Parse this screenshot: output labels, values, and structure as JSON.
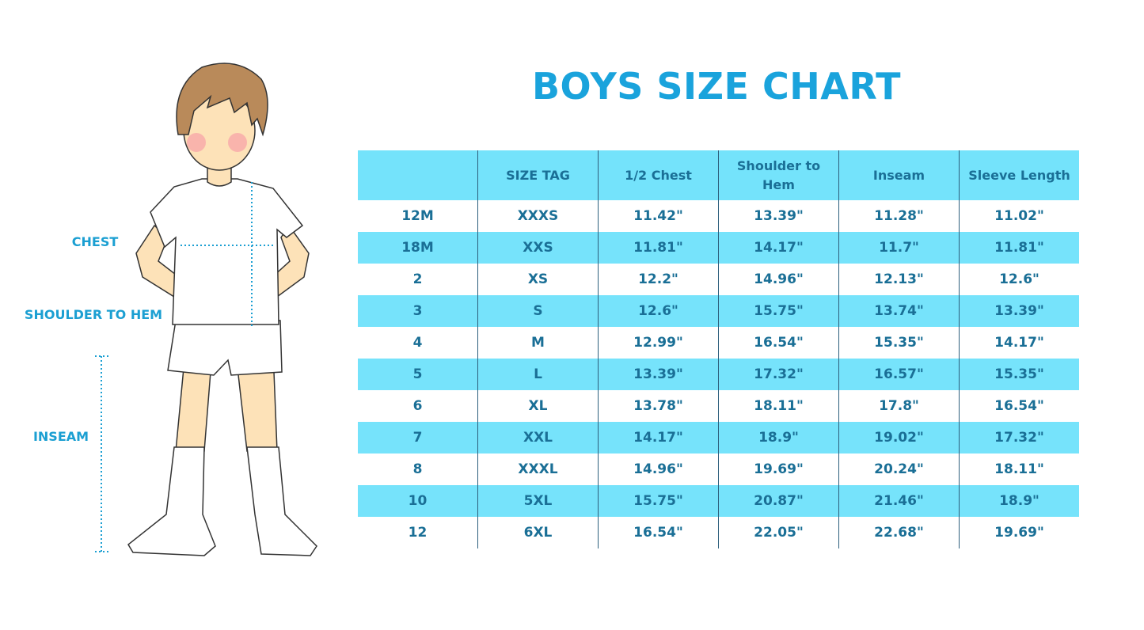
{
  "title": "BOYS SIZE CHART",
  "measure_labels": {
    "chest": "CHEST",
    "shoulder_to_hem": "SHOULDER TO HEM",
    "inseam": "INSEAM"
  },
  "table": {
    "headers": [
      "SIZE TAG",
      "1/2 Chest",
      "Shoulder to Hem",
      "Inseam",
      "Sleeve Length"
    ],
    "rows": [
      [
        "12M",
        "XXXS",
        "11.42\"",
        "13.39\"",
        "11.28\"",
        "11.02\""
      ],
      [
        "18M",
        "XXS",
        "11.81\"",
        "14.17\"",
        "11.7\"",
        "11.81\""
      ],
      [
        "2",
        "XS",
        "12.2\"",
        "14.96\"",
        "12.13\"",
        "12.6\""
      ],
      [
        "3",
        "S",
        "12.6\"",
        "15.75\"",
        "13.74\"",
        "13.39\""
      ],
      [
        "4",
        "M",
        "12.99\"",
        "16.54\"",
        "15.35\"",
        "14.17\""
      ],
      [
        "5",
        "L",
        "13.39\"",
        "17.32\"",
        "16.57\"",
        "15.35\""
      ],
      [
        "6",
        "XL",
        "13.78\"",
        "18.11\"",
        "17.8\"",
        "16.54\""
      ],
      [
        "7",
        "XXL",
        "14.17\"",
        "18.9\"",
        "19.02\"",
        "17.32\""
      ],
      [
        "8",
        "XXXL",
        "14.96\"",
        "19.69\"",
        "20.24\"",
        "18.11\""
      ],
      [
        "10",
        "5XL",
        "15.75\"",
        "20.87\"",
        "21.46\"",
        "18.9\""
      ],
      [
        "12",
        "6XL",
        "16.54\"",
        "22.05\"",
        "22.68\"",
        "19.69\""
      ]
    ]
  }
}
